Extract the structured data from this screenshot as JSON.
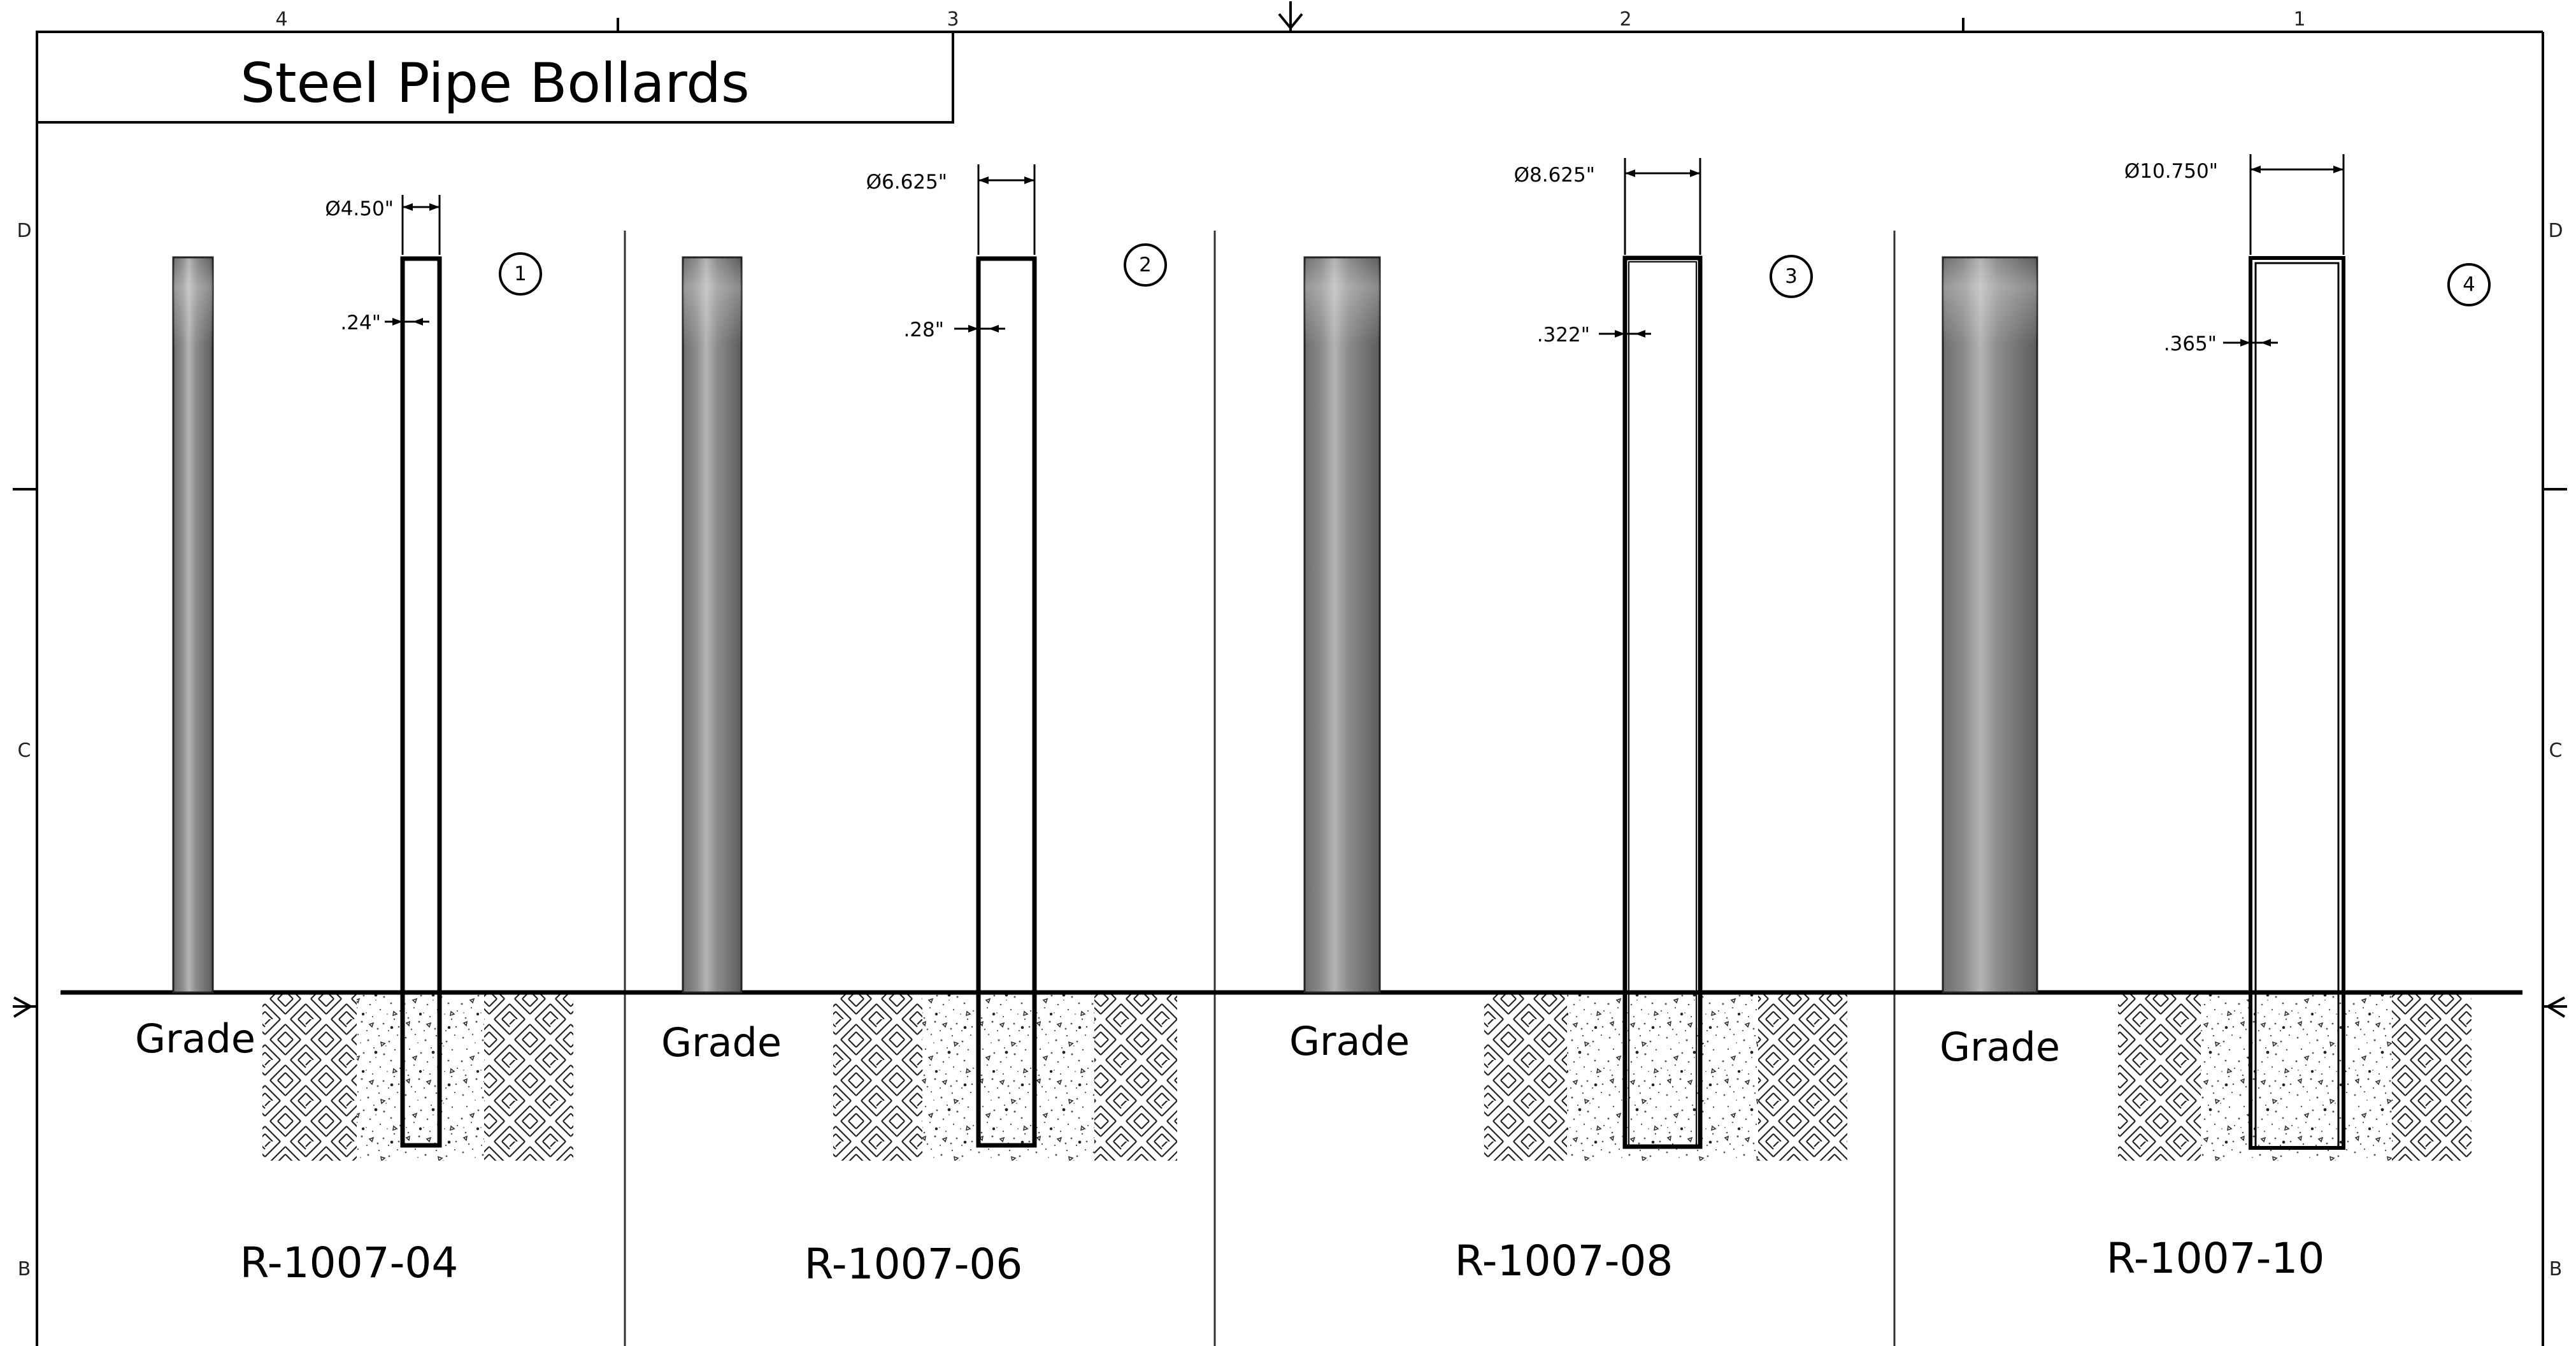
{
  "title": "Steel Pipe Bollards",
  "grade_label": "Grade",
  "zones": {
    "top": [
      "4",
      "3",
      "2",
      "1"
    ],
    "left": [
      "D",
      "C",
      "B"
    ],
    "right": [
      "D",
      "C",
      "B"
    ]
  },
  "bollards": [
    {
      "part": "R-1007-04",
      "diameter": "Ø4.50\"",
      "wall": ".24\"",
      "balloon": "1"
    },
    {
      "part": "R-1007-06",
      "diameter": "Ø6.625\"",
      "wall": ".28\"",
      "balloon": "2"
    },
    {
      "part": "R-1007-08",
      "diameter": "Ø8.625\"",
      "wall": ".322\"",
      "balloon": "3"
    },
    {
      "part": "R-1007-10",
      "diameter": "Ø10.750\"",
      "wall": ".365\"",
      "balloon": "4"
    }
  ],
  "colors": {
    "line": "#000000",
    "pipe_dark": "#6b6b6b",
    "pipe_light": "#b8b8b8",
    "gravel": "#444444"
  }
}
